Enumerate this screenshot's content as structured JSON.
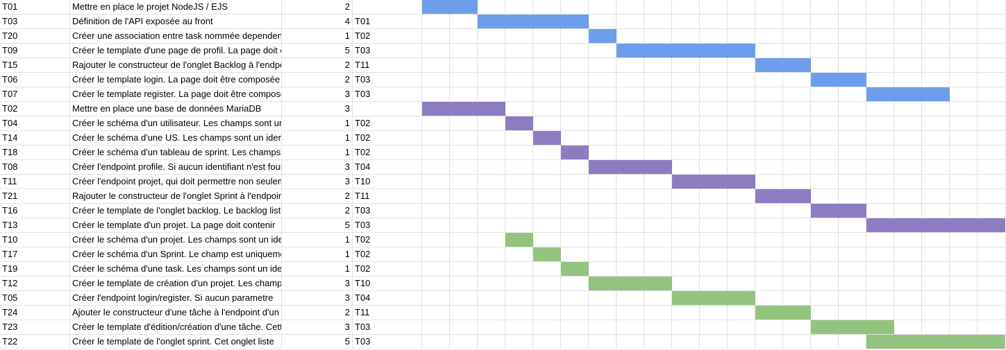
{
  "colors": {
    "blue": "#6d9eeb",
    "purple": "#8e7cc3",
    "green": "#93c47d",
    "grid": "#e2e2e2"
  },
  "gantt": {
    "period_count": 21
  },
  "rows": [
    {
      "id": "T01",
      "task": "Mettre en place le projet NodeJS / EJS",
      "duration": "2",
      "dependency": "",
      "color": "blue",
      "start": 0,
      "length": 2
    },
    {
      "id": "T03",
      "task": "Définition de l'API exposée au front",
      "duration": "4",
      "dependency": "T01",
      "color": "blue",
      "start": 2,
      "length": 4
    },
    {
      "id": "T20",
      "task": "Créer une association entre task nommée dependencies",
      "duration": "1",
      "dependency": "T02",
      "color": "blue",
      "start": 6,
      "length": 1
    },
    {
      "id": "T09",
      "task": "Créer le template d'une page de profil. La page doit être",
      "duration": "5",
      "dependency": "T03",
      "color": "blue",
      "start": 7,
      "length": 5
    },
    {
      "id": "T15",
      "task": "Rajouter le constructeur de l'onglet Backlog à l'endpoint",
      "duration": "2",
      "dependency": "T11",
      "color": "blue",
      "start": 12,
      "length": 2
    },
    {
      "id": "T06",
      "task": "Créer le template login. La page doit être composée",
      "duration": "2",
      "dependency": "T03",
      "color": "blue",
      "start": 14,
      "length": 2
    },
    {
      "id": "T07",
      "task": "Créer le template register. La page doit être composée",
      "duration": "3",
      "dependency": "T03",
      "color": "blue",
      "start": 16,
      "length": 3
    },
    {
      "id": "T02",
      "task": "Mettre en place une base de données MariaDB",
      "duration": "3",
      "dependency": "",
      "color": "purple",
      "start": 0,
      "length": 3
    },
    {
      "id": "T04",
      "task": "Créer le schéma d'un utilisateur. Les champs sont un",
      "duration": "1",
      "dependency": "T02",
      "color": "purple",
      "start": 3,
      "length": 1
    },
    {
      "id": "T14",
      "task": "Créer le schéma d'une US. Les champs sont un identifiant",
      "duration": "1",
      "dependency": "T02",
      "color": "purple",
      "start": 4,
      "length": 1
    },
    {
      "id": "T18",
      "task": "Créer le schéma d'un tableau de sprint. Les champs",
      "duration": "1",
      "dependency": "T02",
      "color": "purple",
      "start": 5,
      "length": 1
    },
    {
      "id": "T08",
      "task": "Créer l'endpoint profile. Si aucun identifiant n'est fourni",
      "duration": "3",
      "dependency": "T04",
      "color": "purple",
      "start": 6,
      "length": 3
    },
    {
      "id": "T11",
      "task": "Créer l'endpoint projet, qui doit permettre non seulement",
      "duration": "3",
      "dependency": "T10",
      "color": "purple",
      "start": 9,
      "length": 3
    },
    {
      "id": "T21",
      "task": "Rajouter le constructeur de l'onglet Sprint à l'endpoint",
      "duration": "2",
      "dependency": "T11",
      "color": "purple",
      "start": 12,
      "length": 2
    },
    {
      "id": "T16",
      "task": "Créer le template de l'onglet backlog. Le backlog liste",
      "duration": "2",
      "dependency": "T03",
      "color": "purple",
      "start": 14,
      "length": 2
    },
    {
      "id": "T13",
      "task": "Créer le template d'un projet. La page doit contenir",
      "duration": "5",
      "dependency": "T03",
      "color": "purple",
      "start": 16,
      "length": 5
    },
    {
      "id": "T10",
      "task": "Créer le schéma d'un projet. Les champs sont un identifiant",
      "duration": "1",
      "dependency": "T02",
      "color": "green",
      "start": 3,
      "length": 1
    },
    {
      "id": "T17",
      "task": "Créer le schéma d'un Sprint. Le champ est uniquement",
      "duration": "1",
      "dependency": "T02",
      "color": "green",
      "start": 4,
      "length": 1
    },
    {
      "id": "T19",
      "task": "Créer le schéma d'une task. Les champs sont un identifiant",
      "duration": "1",
      "dependency": "T02",
      "color": "green",
      "start": 5,
      "length": 1
    },
    {
      "id": "T12",
      "task": "Créer le template de création d'un projet. Les champs",
      "duration": "3",
      "dependency": "T10",
      "color": "green",
      "start": 6,
      "length": 3
    },
    {
      "id": "T05",
      "task": "Créer l'endpoint login/register. Si aucun parametre",
      "duration": "3",
      "dependency": "T04",
      "color": "green",
      "start": 9,
      "length": 3
    },
    {
      "id": "T24",
      "task": "Ajouter le constructeur d'une tâche à l'endpoint d'un",
      "duration": "2",
      "dependency": "T11",
      "color": "green",
      "start": 12,
      "length": 2
    },
    {
      "id": "T23",
      "task": "Créer le template d'édition/création d'une tâche. Cette",
      "duration": "3",
      "dependency": "T03",
      "color": "green",
      "start": 14,
      "length": 3
    },
    {
      "id": "T22",
      "task": "Créer le template de l'onglet sprint. Cet onglet liste",
      "duration": "5",
      "dependency": "T03",
      "color": "green",
      "start": 16,
      "length": 5
    }
  ]
}
